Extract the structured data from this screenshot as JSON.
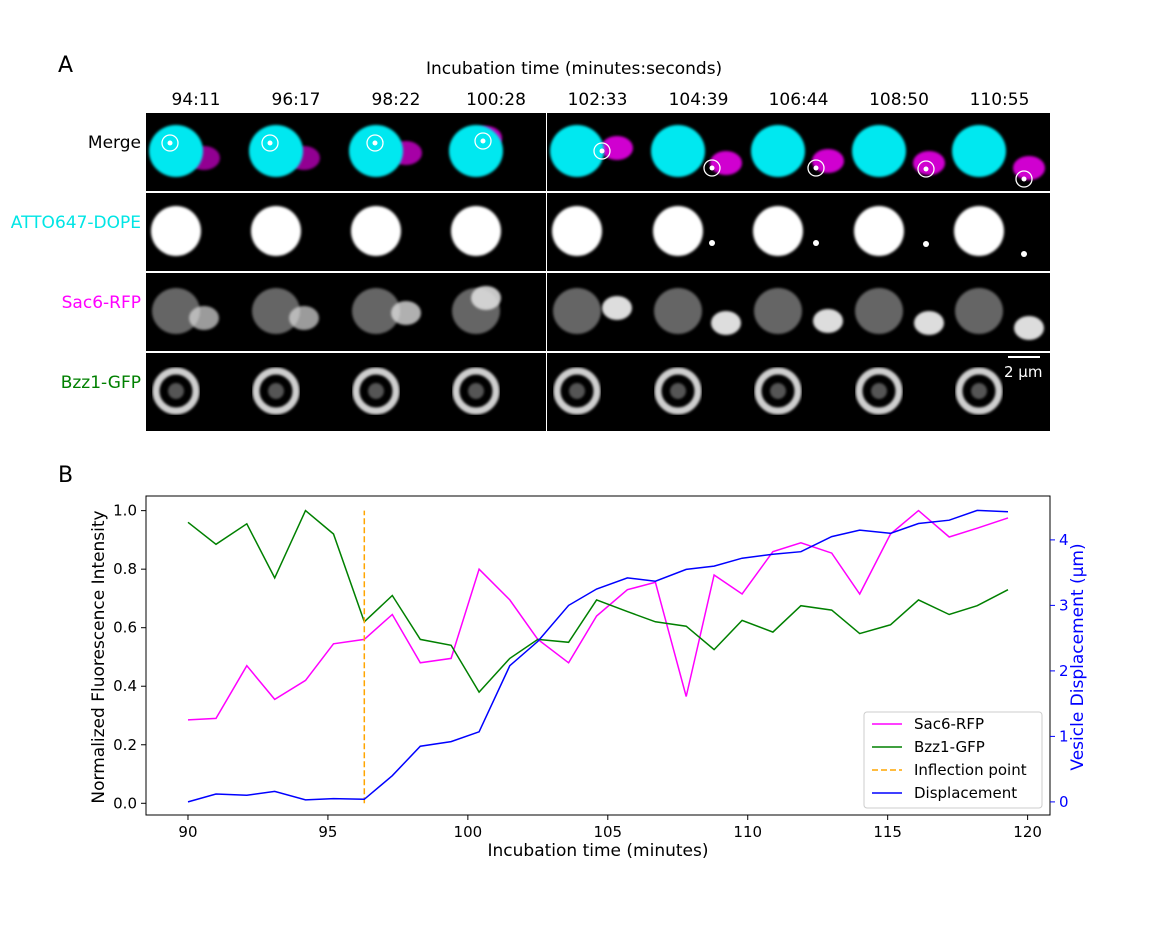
{
  "panel_a": {
    "letter": "A",
    "title": "Incubation time (minutes:seconds)",
    "timepoints": [
      "94:11",
      "96:17",
      "98:22",
      "100:28",
      "102:33",
      "104:39",
      "106:44",
      "108:50",
      "110:55"
    ],
    "rows": [
      {
        "label": "Merge",
        "color": "#000000"
      },
      {
        "label": "ATTO647-DOPE",
        "color": "#00e5e5"
      },
      {
        "label": "Sac6-RFP",
        "color": "#ff00ff"
      },
      {
        "label": "Bzz1-GFP",
        "color": "#008000"
      }
    ],
    "scale_bar": "2 µm"
  },
  "panel_b": {
    "letter": "B"
  },
  "chart_data": {
    "type": "line",
    "xlabel": "Incubation time (minutes)",
    "ylabel": "Normalized Fluorescence Intensity",
    "y2label": "Vesicle Displacement (µm)",
    "xlim": [
      88.5,
      120.8
    ],
    "ylim": [
      -0.04,
      1.05
    ],
    "y2lim": [
      -0.2,
      4.67
    ],
    "xticks": [
      90,
      95,
      100,
      105,
      110,
      115,
      120
    ],
    "yticks": [
      0.0,
      0.2,
      0.4,
      0.6,
      0.8,
      1.0
    ],
    "y2ticks": [
      0,
      1,
      2,
      3,
      4
    ],
    "legend_position": "lower-right",
    "series": [
      {
        "name": "Sac6-RFP",
        "color": "#ff00ff",
        "axis": "left",
        "x": [
          90.0,
          91.0,
          92.1,
          93.1,
          94.2,
          95.2,
          96.3,
          97.3,
          98.3,
          99.4,
          100.4,
          101.5,
          102.5,
          103.6,
          104.6,
          105.7,
          106.7,
          107.8,
          108.8,
          109.8,
          110.9,
          111.9,
          113.0,
          114.0,
          115.1,
          116.1,
          117.2,
          118.2,
          119.3
        ],
        "values": [
          0.285,
          0.29,
          0.47,
          0.355,
          0.42,
          0.545,
          0.56,
          0.645,
          0.48,
          0.495,
          0.8,
          0.695,
          0.56,
          0.48,
          0.64,
          0.73,
          0.755,
          0.365,
          0.78,
          0.715,
          0.86,
          0.89,
          0.855,
          0.715,
          0.92,
          1.0,
          0.91,
          0.94,
          0.975
        ]
      },
      {
        "name": "Bzz1-GFP",
        "color": "#008000",
        "axis": "left",
        "x": [
          90.0,
          91.0,
          92.1,
          93.1,
          94.2,
          95.2,
          96.3,
          97.3,
          98.3,
          99.4,
          100.4,
          101.5,
          102.5,
          103.6,
          104.6,
          105.7,
          106.7,
          107.8,
          108.8,
          109.8,
          110.9,
          111.9,
          113.0,
          114.0,
          115.1,
          116.1,
          117.2,
          118.2,
          119.3
        ],
        "values": [
          0.96,
          0.885,
          0.955,
          0.77,
          1.0,
          0.92,
          0.62,
          0.71,
          0.56,
          0.54,
          0.38,
          0.495,
          0.56,
          0.55,
          0.695,
          0.655,
          0.62,
          0.605,
          0.525,
          0.625,
          0.585,
          0.675,
          0.66,
          0.58,
          0.61,
          0.695,
          0.645,
          0.675,
          0.73
        ]
      },
      {
        "name": "Inflection point",
        "color": "#ffa500",
        "axis": "left",
        "style": "dashed",
        "x": [
          96.3,
          96.3
        ],
        "values": [
          0.0,
          1.0
        ]
      },
      {
        "name": "Displacement",
        "color": "#0000ff",
        "axis": "right",
        "x": [
          90.0,
          91.0,
          92.1,
          93.1,
          94.2,
          95.2,
          96.3,
          97.3,
          98.3,
          99.4,
          100.4,
          101.5,
          102.5,
          103.6,
          104.6,
          105.7,
          106.7,
          107.8,
          108.8,
          109.8,
          110.9,
          111.9,
          113.0,
          114.0,
          115.1,
          116.1,
          117.2,
          118.2,
          119.3
        ],
        "values": [
          0.0,
          0.12,
          0.1,
          0.16,
          0.03,
          0.05,
          0.04,
          0.4,
          0.85,
          0.92,
          1.07,
          2.08,
          2.45,
          3.0,
          3.25,
          3.42,
          3.37,
          3.55,
          3.6,
          3.72,
          3.78,
          3.82,
          4.05,
          4.15,
          4.1,
          4.25,
          4.3,
          4.45,
          4.43
        ]
      }
    ]
  }
}
